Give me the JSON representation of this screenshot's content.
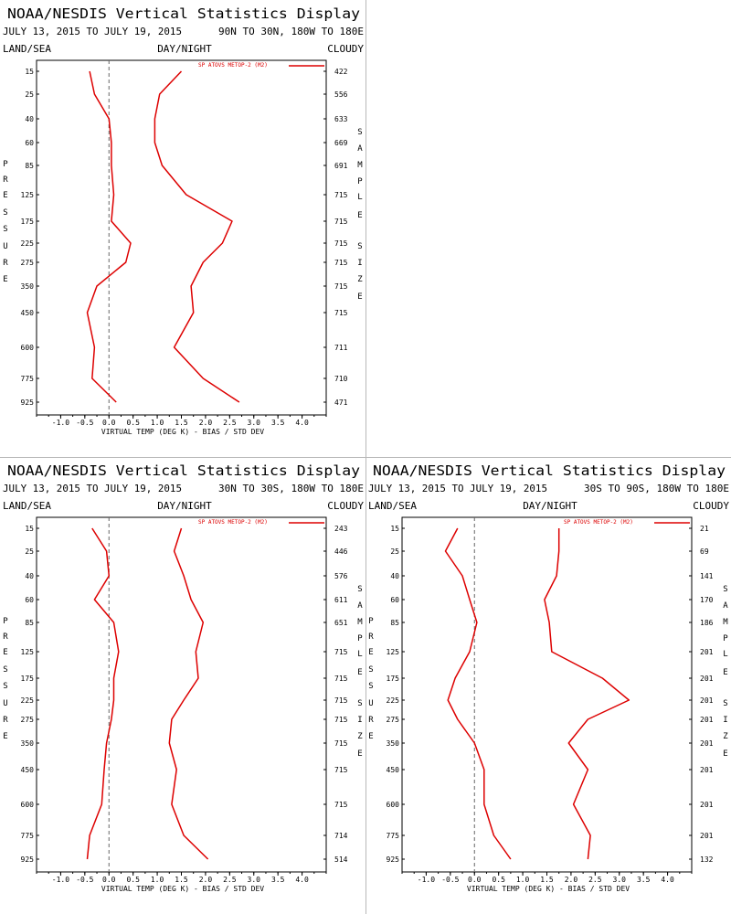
{
  "panels": [
    {
      "title": "NOAA/NESDIS Vertical Statistics Display",
      "date_range": "JULY 13, 2015 TO JULY 19, 2015",
      "region": "90N TO 30N, 180W TO 180E",
      "surface_label": "LAND/SEA",
      "time_label": "DAY/NIGHT",
      "cloud_label": "CLOUDY",
      "left_vertical_label": "PRESSURE",
      "right_vertical_label": "SAMPLE SIZE"
    },
    {
      "title": "NOAA/NESDIS Vertical Statistics Display",
      "date_range": "JULY 13, 2015 TO JULY 19, 2015",
      "region": "30N TO 30S, 180W TO 180E",
      "surface_label": "LAND/SEA",
      "time_label": "DAY/NIGHT",
      "cloud_label": "CLOUDY",
      "left_vertical_label": "PRESSURE",
      "right_vertical_label": "SAMPLE SIZE"
    },
    {
      "title": "NOAA/NESDIS Vertical Statistics Display",
      "date_range": "JULY 13, 2015 TO JULY 19, 2015",
      "region": "30S TO 90S, 180W TO 180E",
      "surface_label": "LAND/SEA",
      "time_label": "DAY/NIGHT",
      "cloud_label": "CLOUDY",
      "left_vertical_label": "PRESSURE",
      "right_vertical_label": "SAMPLE SIZE"
    }
  ],
  "chart_data": [
    {
      "type": "line",
      "xlabel": "VIRTUAL TEMP (DEG K) - BIAS / STD DEV",
      "ylabel": "PRESSURE",
      "xlim": [
        -1.5,
        4.5
      ],
      "x_ticks": [
        "-1.0",
        "-0.5",
        "0.0",
        "0.5",
        "1.0",
        "1.5",
        "2.0",
        "2.5",
        "3.0",
        "3.5",
        "4.0"
      ],
      "pressure_levels": [
        "15",
        "25",
        "40",
        "60",
        "85",
        "125",
        "175",
        "225",
        "275",
        "350",
        "450",
        "600",
        "775",
        "925"
      ],
      "sample_size": [
        "422",
        "556",
        "633",
        "669",
        "691",
        "715",
        "715",
        "715",
        "715",
        "715",
        "715",
        "711",
        "710",
        "471"
      ],
      "legend": "SP ATOVS METOP-2 (M2)",
      "legend_position": "top-right",
      "line_color": "#dd0000",
      "series": [
        {
          "name": "BIAS",
          "values": [
            -0.4,
            -0.3,
            0.0,
            0.05,
            0.05,
            0.1,
            0.05,
            0.45,
            0.35,
            -0.25,
            -0.45,
            -0.3,
            -0.35,
            0.15
          ]
        },
        {
          "name": "STD DEV",
          "values": [
            1.5,
            1.05,
            0.95,
            0.95,
            1.1,
            1.6,
            2.55,
            2.35,
            1.95,
            1.7,
            1.75,
            1.35,
            1.95,
            2.7
          ]
        }
      ]
    },
    {
      "type": "line",
      "xlabel": "VIRTUAL TEMP (DEG K) - BIAS / STD DEV",
      "ylabel": "PRESSURE",
      "xlim": [
        -1.5,
        4.5
      ],
      "x_ticks": [
        "-1.0",
        "-0.5",
        "0.0",
        "0.5",
        "1.0",
        "1.5",
        "2.0",
        "2.5",
        "3.0",
        "3.5",
        "4.0"
      ],
      "pressure_levels": [
        "15",
        "25",
        "40",
        "60",
        "85",
        "125",
        "175",
        "225",
        "275",
        "350",
        "450",
        "600",
        "775",
        "925"
      ],
      "sample_size": [
        "243",
        "446",
        "576",
        "611",
        "651",
        "715",
        "715",
        "715",
        "715",
        "715",
        "715",
        "715",
        "714",
        "514"
      ],
      "legend": "SP ATOVS METOP-2 (M2)",
      "legend_position": "top-right",
      "line_color": "#dd0000",
      "series": [
        {
          "name": "BIAS",
          "values": [
            -0.35,
            -0.05,
            0.0,
            -0.3,
            0.1,
            0.2,
            0.1,
            0.1,
            0.05,
            -0.05,
            -0.1,
            -0.15,
            -0.4,
            -0.45
          ]
        },
        {
          "name": "STD DEV",
          "values": [
            1.5,
            1.35,
            1.55,
            1.7,
            1.95,
            1.8,
            1.85,
            1.55,
            1.3,
            1.25,
            1.4,
            1.3,
            1.55,
            2.05
          ]
        }
      ]
    },
    {
      "type": "line",
      "xlabel": "VIRTUAL TEMP (DEG K) - BIAS / STD DEV",
      "ylabel": "PRESSURE",
      "xlim": [
        -1.5,
        4.5
      ],
      "x_ticks": [
        "-1.0",
        "-0.5",
        "0.0",
        "0.5",
        "1.0",
        "1.5",
        "2.0",
        "2.5",
        "3.0",
        "3.5",
        "4.0"
      ],
      "pressure_levels": [
        "15",
        "25",
        "40",
        "60",
        "85",
        "125",
        "175",
        "225",
        "275",
        "350",
        "450",
        "600",
        "775",
        "925"
      ],
      "sample_size": [
        "21",
        "69",
        "141",
        "170",
        "186",
        "201",
        "201",
        "201",
        "201",
        "201",
        "201",
        "201",
        "201",
        "132"
      ],
      "legend": "SP ATOVS METOP-2 (M2)",
      "legend_position": "top-right",
      "line_color": "#dd0000",
      "series": [
        {
          "name": "BIAS",
          "values": [
            -0.35,
            -0.6,
            -0.25,
            -0.1,
            0.05,
            -0.1,
            -0.4,
            -0.55,
            -0.35,
            0.0,
            0.2,
            0.2,
            0.4,
            0.75
          ]
        },
        {
          "name": "STD DEV",
          "values": [
            1.75,
            1.75,
            1.7,
            1.45,
            1.55,
            1.6,
            2.65,
            3.2,
            2.35,
            1.95,
            2.35,
            2.05,
            2.4,
            2.35
          ]
        }
      ]
    }
  ]
}
